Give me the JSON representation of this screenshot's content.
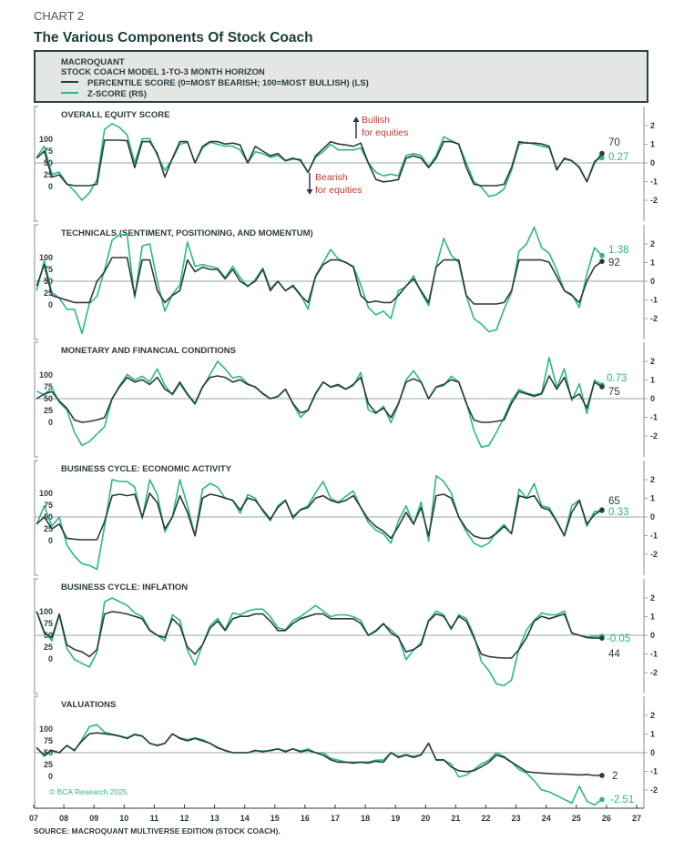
{
  "header": {
    "chart_number": "CHART 2",
    "title": "The Various Components Of Stock Coach"
  },
  "legend": {
    "line1": "MACROQUANT",
    "line2": "STOCK COACH MODEL 1-TO-3 MONTH HORIZON",
    "percentile_label": "PERCENTILE SCORE (0=MOST BEARISH; 100=MOST BULLISH) (LS)",
    "zscore_label": "Z-SCORE (RS)"
  },
  "annotations": {
    "bullish_1": "Bullish",
    "bullish_2": "for equities",
    "bearish_1": "Bearish",
    "bearish_2": "for equities"
  },
  "copyright": "© BCA Research 2025",
  "source": "SOURCE: MACROQUANT MULTIVERSE EDITION (STOCK COACH).",
  "colors": {
    "percentile": "#2b3a3f",
    "zscore": "#2db784",
    "annotation": "#c0392b",
    "legend_bg": "#e4e6e3"
  },
  "chart_data": {
    "type": "line",
    "x_tick_labels": [
      "07",
      "08",
      "09",
      "10",
      "11",
      "12",
      "13",
      "14",
      "15",
      "16",
      "17",
      "18",
      "19",
      "20",
      "21",
      "22",
      "23",
      "24",
      "25",
      "26",
      "27"
    ],
    "left_ticks": [
      "100",
      "75",
      "50",
      "25",
      "0"
    ],
    "right_ticks": [
      "2",
      "1",
      "0",
      "-1",
      "-2"
    ],
    "left_axis_range": [
      0,
      100
    ],
    "right_axis_range": [
      -3,
      3
    ],
    "x": [
      "2007Q1",
      "2007Q2",
      "2007Q3",
      "2007Q4",
      "2008Q1",
      "2008Q2",
      "2008Q3",
      "2008Q4",
      "2009Q1",
      "2009Q2",
      "2009Q3",
      "2009Q4",
      "2010Q1",
      "2010Q2",
      "2010Q3",
      "2010Q4",
      "2011Q1",
      "2011Q2",
      "2011Q3",
      "2011Q4",
      "2012Q1",
      "2012Q2",
      "2012Q3",
      "2012Q4",
      "2013Q1",
      "2013Q2",
      "2013Q3",
      "2013Q4",
      "2014Q1",
      "2014Q2",
      "2014Q3",
      "2014Q4",
      "2015Q1",
      "2015Q2",
      "2015Q3",
      "2015Q4",
      "2016Q1",
      "2016Q2",
      "2016Q3",
      "2016Q4",
      "2017Q1",
      "2017Q2",
      "2017Q3",
      "2017Q4",
      "2018Q1",
      "2018Q2",
      "2018Q3",
      "2018Q4",
      "2019Q1",
      "2019Q2",
      "2019Q3",
      "2019Q4",
      "2020Q1",
      "2020Q2",
      "2020Q3",
      "2020Q4",
      "2021Q1",
      "2021Q2",
      "2021Q3",
      "2021Q4",
      "2022Q1",
      "2022Q2",
      "2022Q3",
      "2022Q4",
      "2023Q1",
      "2023Q2",
      "2023Q3",
      "2023Q4",
      "2024Q1",
      "2024Q2",
      "2024Q3",
      "2024Q4",
      "2025Q1",
      "2025Q2",
      "2025Q3",
      "2025Q4"
    ],
    "panels": [
      {
        "title": "OVERALL EQUITY SCORE",
        "end_percentile": "70",
        "end_zscore": "0.27",
        "percentile": [
          60,
          75,
          20,
          25,
          5,
          2,
          2,
          2,
          5,
          98,
          98,
          98,
          97,
          40,
          95,
          95,
          70,
          20,
          60,
          95,
          95,
          50,
          85,
          95,
          95,
          90,
          92,
          88,
          50,
          85,
          75,
          65,
          70,
          55,
          60,
          55,
          30,
          65,
          80,
          95,
          90,
          88,
          85,
          92,
          50,
          15,
          10,
          12,
          15,
          60,
          65,
          60,
          40,
          60,
          95,
          95,
          90,
          40,
          5,
          2,
          2,
          2,
          5,
          40,
          95,
          92,
          92,
          90,
          85,
          35,
          60,
          55,
          40,
          10,
          50,
          70
        ],
        "zscore": [
          0.3,
          0.9,
          -0.6,
          -0.5,
          -1.1,
          -1.5,
          -2.0,
          -1.6,
          -0.9,
          1.8,
          2.1,
          1.9,
          1.5,
          0.0,
          1.3,
          1.3,
          0.4,
          -0.4,
          0.2,
          1.0,
          1.1,
          0.0,
          0.8,
          1.1,
          1.0,
          0.9,
          0.9,
          0.7,
          0.0,
          0.6,
          0.5,
          0.3,
          0.4,
          0.1,
          0.2,
          0.2,
          -0.5,
          0.3,
          0.6,
          1.0,
          0.7,
          0.7,
          0.7,
          0.8,
          0.0,
          -0.5,
          -0.7,
          -0.6,
          -0.7,
          0.4,
          0.5,
          0.4,
          -0.2,
          0.4,
          1.4,
          1.2,
          1.0,
          0.0,
          -1.0,
          -1.3,
          -1.8,
          -1.7,
          -1.4,
          -0.4,
          1.0,
          1.1,
          1.0,
          0.9,
          0.8,
          -0.3,
          0.2,
          0.1,
          -0.2,
          -1.0,
          0.1,
          0.27
        ]
      },
      {
        "title": "TECHNICALS (SENTIMENT, POSITIONING, AND MOMENTUM)",
        "end_percentile": "92",
        "end_zscore": "1.38",
        "percentile": [
          40,
          85,
          20,
          15,
          10,
          5,
          5,
          5,
          50,
          70,
          100,
          100,
          100,
          20,
          95,
          95,
          30,
          5,
          20,
          30,
          95,
          70,
          80,
          75,
          75,
          55,
          75,
          50,
          40,
          50,
          75,
          30,
          50,
          30,
          40,
          20,
          5,
          60,
          85,
          95,
          95,
          90,
          80,
          20,
          5,
          8,
          5,
          5,
          20,
          40,
          55,
          30,
          5,
          80,
          95,
          95,
          95,
          20,
          2,
          2,
          2,
          2,
          5,
          30,
          95,
          95,
          95,
          95,
          90,
          60,
          30,
          20,
          5,
          50,
          80,
          92
        ],
        "zscore": [
          -0.5,
          1.1,
          -0.6,
          -0.9,
          -1.5,
          -1.5,
          -2.8,
          -1.2,
          -0.8,
          0.6,
          2.2,
          2.5,
          2.5,
          -0.9,
          1.9,
          2.0,
          0.0,
          -1.6,
          -0.7,
          -0.2,
          2.1,
          0.8,
          0.9,
          0.8,
          0.7,
          0.2,
          0.8,
          0.2,
          -0.3,
          0.1,
          0.7,
          -0.4,
          0.0,
          -0.5,
          -0.2,
          -0.7,
          -1.5,
          0.3,
          1.0,
          1.7,
          1.2,
          1.0,
          0.8,
          -0.2,
          -1.4,
          -1.8,
          -1.6,
          -2.0,
          -0.5,
          -0.3,
          0.3,
          -0.6,
          -1.3,
          0.8,
          2.3,
          1.4,
          1.0,
          -0.8,
          -2.0,
          -2.3,
          -2.7,
          -2.6,
          -1.5,
          -0.6,
          1.6,
          2.0,
          2.9,
          1.8,
          1.5,
          0.6,
          -0.5,
          -0.7,
          -1.4,
          0.4,
          1.8,
          1.38
        ]
      },
      {
        "title": "MONETARY AND FINANCIAL CONDITIONS",
        "end_percentile": "75",
        "end_zscore": "0.73",
        "percentile": [
          50,
          60,
          65,
          45,
          30,
          5,
          0,
          2,
          5,
          10,
          50,
          75,
          95,
          85,
          90,
          80,
          95,
          70,
          60,
          85,
          60,
          40,
          75,
          95,
          98,
          95,
          85,
          90,
          80,
          75,
          60,
          50,
          55,
          70,
          40,
          20,
          25,
          60,
          85,
          75,
          80,
          70,
          80,
          95,
          40,
          20,
          30,
          10,
          40,
          85,
          92,
          85,
          50,
          75,
          80,
          90,
          85,
          40,
          5,
          0,
          0,
          2,
          5,
          40,
          65,
          60,
          55,
          60,
          98,
          70,
          95,
          50,
          60,
          30,
          85,
          75
        ],
        "zscore": [
          0.4,
          0.2,
          0.6,
          -0.2,
          -0.6,
          -1.8,
          -2.5,
          -2.3,
          -1.9,
          -1.5,
          0.0,
          0.7,
          1.3,
          1.0,
          1.2,
          0.9,
          1.6,
          0.7,
          0.2,
          0.8,
          0.2,
          -0.3,
          0.6,
          1.3,
          2.0,
          1.6,
          1.1,
          1.2,
          0.8,
          0.6,
          0.3,
          0.0,
          0.1,
          0.5,
          -0.3,
          -1.0,
          -0.6,
          0.3,
          0.9,
          0.6,
          0.7,
          0.5,
          0.7,
          1.4,
          -0.6,
          -0.8,
          -0.4,
          -1.3,
          -0.3,
          1.0,
          1.5,
          0.9,
          0.0,
          0.6,
          0.7,
          1.2,
          0.9,
          -0.2,
          -1.7,
          -2.6,
          -2.5,
          -1.8,
          -1.0,
          -0.1,
          0.5,
          0.3,
          0.2,
          0.3,
          2.2,
          0.6,
          1.6,
          -0.1,
          0.8,
          -0.8,
          1.0,
          0.73
        ]
      },
      {
        "title": "BUSINESS CYCLE: ECONOMIC ACTIVITY",
        "end_percentile": "65",
        "end_zscore": "0.33",
        "percentile": [
          35,
          50,
          25,
          35,
          5,
          3,
          2,
          2,
          2,
          40,
          95,
          98,
          95,
          98,
          50,
          100,
          80,
          25,
          50,
          95,
          60,
          10,
          90,
          98,
          95,
          90,
          85,
          65,
          90,
          85,
          65,
          45,
          70,
          85,
          50,
          65,
          70,
          90,
          95,
          85,
          80,
          85,
          95,
          70,
          45,
          30,
          20,
          5,
          30,
          60,
          35,
          70,
          10,
          95,
          98,
          90,
          50,
          25,
          10,
          5,
          5,
          15,
          30,
          15,
          95,
          90,
          95,
          70,
          65,
          40,
          10,
          60,
          85,
          35,
          55,
          65
        ],
        "zscore": [
          -0.4,
          0.6,
          -0.5,
          0.0,
          -1.5,
          -2.1,
          -2.5,
          -2.6,
          -2.8,
          -0.5,
          2.0,
          1.9,
          1.9,
          1.6,
          -0.1,
          2.0,
          1.2,
          -0.8,
          0.0,
          2.0,
          0.6,
          -1.0,
          1.5,
          1.8,
          1.6,
          1.0,
          0.9,
          0.2,
          1.2,
          1.0,
          0.3,
          -0.2,
          0.6,
          0.9,
          -0.1,
          0.4,
          0.6,
          1.3,
          1.9,
          1.0,
          0.8,
          1.1,
          1.4,
          0.5,
          -0.3,
          -0.7,
          -0.9,
          -1.4,
          -0.2,
          0.6,
          -0.4,
          0.8,
          -1.3,
          2.2,
          1.9,
          1.3,
          0.0,
          -0.8,
          -1.4,
          -1.6,
          -1.4,
          -0.8,
          -0.4,
          -0.9,
          1.5,
          1.0,
          1.8,
          0.6,
          0.5,
          -0.2,
          -1.0,
          0.6,
          0.9,
          -0.5,
          0.3,
          0.33
        ]
      },
      {
        "title": "BUSINESS CYCLE: INFLATION",
        "end_percentile": "44",
        "end_zscore": "-0.05",
        "percentile": [
          100,
          55,
          45,
          95,
          30,
          20,
          15,
          5,
          20,
          95,
          100,
          98,
          95,
          90,
          85,
          60,
          50,
          45,
          85,
          70,
          25,
          10,
          30,
          65,
          80,
          60,
          85,
          90,
          90,
          95,
          95,
          80,
          60,
          60,
          75,
          85,
          90,
          95,
          95,
          85,
          85,
          85,
          85,
          75,
          50,
          60,
          75,
          55,
          45,
          15,
          20,
          30,
          80,
          95,
          90,
          65,
          90,
          80,
          45,
          10,
          5,
          3,
          2,
          2,
          20,
          45,
          80,
          90,
          85,
          90,
          95,
          55,
          50,
          45,
          44,
          44
        ],
        "zscore": [
          1.3,
          0.2,
          -0.3,
          1.1,
          -0.7,
          -1.3,
          -1.5,
          -1.7,
          -0.9,
          1.8,
          2.0,
          1.8,
          1.6,
          1.2,
          1.0,
          0.3,
          0.0,
          -0.3,
          1.1,
          0.8,
          -0.8,
          -1.6,
          -0.5,
          0.5,
          0.9,
          0.3,
          1.2,
          1.1,
          1.3,
          1.4,
          1.4,
          1.0,
          0.4,
          0.3,
          0.8,
          1.0,
          1.3,
          1.6,
          1.3,
          1.0,
          1.1,
          1.1,
          1.0,
          0.8,
          0.0,
          0.2,
          0.6,
          0.3,
          -0.1,
          -1.3,
          -0.8,
          -0.4,
          0.8,
          1.3,
          1.1,
          0.3,
          1.1,
          0.9,
          0.0,
          -1.4,
          -1.9,
          -2.6,
          -2.7,
          -2.4,
          -0.7,
          0.3,
          0.8,
          1.2,
          1.1,
          1.1,
          1.3,
          0.1,
          0.0,
          -0.1,
          -0.05,
          -0.05
        ]
      },
      {
        "title": "VALUATIONS",
        "end_percentile": "2",
        "end_zscore": "-2.51",
        "percentile": [
          60,
          45,
          55,
          50,
          65,
          55,
          75,
          90,
          92,
          90,
          88,
          85,
          80,
          88,
          85,
          70,
          65,
          70,
          90,
          80,
          75,
          80,
          75,
          70,
          60,
          55,
          50,
          50,
          50,
          55,
          52,
          55,
          58,
          52,
          58,
          52,
          55,
          50,
          45,
          35,
          30,
          30,
          28,
          30,
          28,
          32,
          30,
          50,
          40,
          45,
          40,
          45,
          70,
          35,
          35,
          20,
          12,
          10,
          12,
          20,
          30,
          45,
          40,
          30,
          20,
          10,
          8,
          7,
          6,
          5,
          5,
          4,
          3,
          4,
          2,
          2
        ],
        "zscore": [
          0.3,
          -0.2,
          0.1,
          0.0,
          0.4,
          0.1,
          0.7,
          1.4,
          1.5,
          1.1,
          1.0,
          0.9,
          0.8,
          1.0,
          0.9,
          0.5,
          0.4,
          0.5,
          1.0,
          0.8,
          0.7,
          0.8,
          0.7,
          0.5,
          0.3,
          0.1,
          0.0,
          0.0,
          0.0,
          0.1,
          0.1,
          0.1,
          0.2,
          0.1,
          0.2,
          0.1,
          0.2,
          0.0,
          0.0,
          -0.3,
          -0.4,
          -0.5,
          -0.5,
          -0.5,
          -0.5,
          -0.4,
          -0.4,
          0.0,
          -0.2,
          -0.1,
          -0.2,
          -0.1,
          0.5,
          -0.4,
          -0.4,
          -0.6,
          -1.3,
          -1.2,
          -0.9,
          -0.6,
          -0.4,
          0.0,
          -0.2,
          -0.5,
          -0.9,
          -1.1,
          -1.5,
          -2.0,
          -2.1,
          -2.3,
          -2.5,
          -2.7,
          -1.8,
          -2.6,
          -2.8,
          -2.51
        ]
      }
    ]
  }
}
